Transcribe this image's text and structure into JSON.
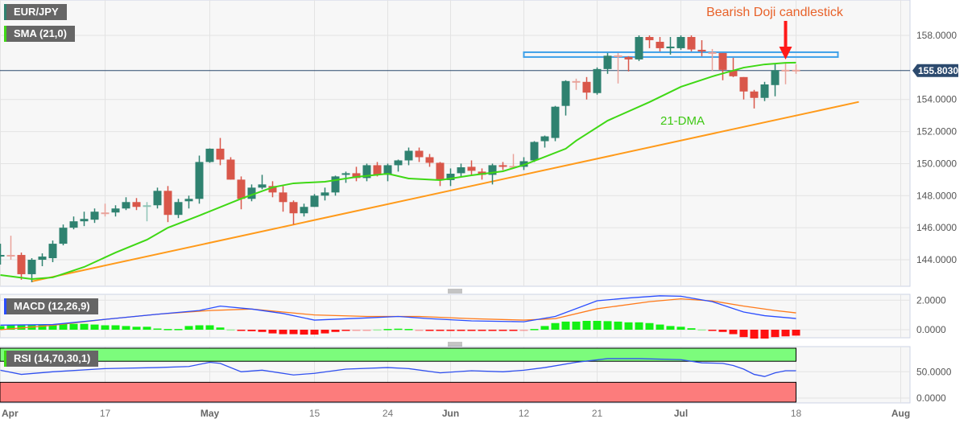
{
  "legend": {
    "symbol": "EUR/JPY",
    "sma": "SMA (21,0)",
    "macd": "MACD (12,26,9)",
    "rsi": "RSI (14,70,30,1)"
  },
  "colors": {
    "up": "#2f8270",
    "down": "#d9574a",
    "sma": "#3fd815",
    "trendline": "#ff9a1a",
    "zone": "#3ea0e8",
    "arrow": "#ff1a1a",
    "annotation": "#e8622a",
    "price_badge": "#2c4a6e",
    "macd_line": "#2a4dff",
    "signal_line": "#ff7a1a",
    "hist_up": "#14f014",
    "hist_down": "#ff1010",
    "rsi_line": "#3050f0",
    "rsi_overbought": "#7cfc7c",
    "rsi_oversold": "#fc7c7c"
  },
  "chart_data": [
    {
      "type": "candlestick",
      "title": "EUR/JPY",
      "y_ticks": [
        "158.0000",
        "154.0000",
        "152.0000",
        "150.0000",
        "148.0000",
        "146.0000",
        "144.0000"
      ],
      "ylim": [
        142.4,
        160.2
      ],
      "last_price": "155.8030",
      "x_ticks": [
        {
          "date": "Apr 3",
          "label": "Apr",
          "month": true
        },
        {
          "date": "Apr 17",
          "label": "17"
        },
        {
          "date": "May 1",
          "label": "May",
          "month": true
        },
        {
          "date": "May 15",
          "label": "15"
        },
        {
          "date": "May 24",
          "label": "24"
        },
        {
          "date": "Jun 1",
          "label": "Jun",
          "month": true
        },
        {
          "date": "Jun 12",
          "label": "12"
        },
        {
          "date": "Jun 21",
          "label": "21"
        },
        {
          "date": "Jul 3",
          "label": "Jul",
          "month": true
        },
        {
          "date": "Jul 18",
          "label": "18"
        },
        {
          "date": "Aug 1",
          "label": "Aug",
          "month": true
        }
      ],
      "candles_fields": [
        "date",
        "open",
        "high",
        "low",
        "close"
      ],
      "candles": [
        [
          "Apr 3",
          144.2,
          145.0,
          143.7,
          144.3
        ],
        [
          "Apr 4",
          144.3,
          145.5,
          144.0,
          144.28
        ],
        [
          "Apr 5",
          144.3,
          144.45,
          142.75,
          143.1
        ],
        [
          "Apr 6",
          143.1,
          144.1,
          142.6,
          144.0
        ],
        [
          "Apr 7",
          144.0,
          144.4,
          143.6,
          144.2
        ],
        [
          "Apr 10",
          144.1,
          145.2,
          143.85,
          145.0
        ],
        [
          "Apr 11",
          145.0,
          146.2,
          144.9,
          146.0
        ],
        [
          "Apr 12",
          146.0,
          146.7,
          145.9,
          146.4
        ],
        [
          "Apr 13",
          146.4,
          147.0,
          146.1,
          146.55
        ],
        [
          "Apr 14",
          146.5,
          147.2,
          146.3,
          147.0
        ],
        [
          "Apr 17",
          146.95,
          147.5,
          146.7,
          146.9
        ],
        [
          "Apr 18",
          146.95,
          147.4,
          146.7,
          147.2
        ],
        [
          "Apr 19",
          147.2,
          147.9,
          147.1,
          147.6
        ],
        [
          "Apr 20",
          147.6,
          147.85,
          147.1,
          147.3
        ],
        [
          "Apr 21",
          147.35,
          147.6,
          146.4,
          147.4
        ],
        [
          "Apr 24",
          147.4,
          148.5,
          147.2,
          148.3
        ],
        [
          "Apr 25",
          148.3,
          148.6,
          146.35,
          146.8
        ],
        [
          "Apr 26",
          146.8,
          147.8,
          146.6,
          147.6
        ],
        [
          "Apr 27",
          147.65,
          148.0,
          147.2,
          147.8
        ],
        [
          "Apr 28",
          147.8,
          150.5,
          147.5,
          150.1
        ],
        [
          "May 1",
          150.1,
          150.95,
          150.05,
          150.93
        ],
        [
          "May 2",
          150.93,
          151.6,
          149.9,
          150.25
        ],
        [
          "May 3",
          150.25,
          150.4,
          149.0,
          149.0
        ],
        [
          "May 4",
          149.0,
          149.2,
          147.15,
          147.8
        ],
        [
          "May 5",
          147.8,
          148.7,
          147.65,
          148.5
        ],
        [
          "May 8",
          148.5,
          149.3,
          148.4,
          148.7
        ],
        [
          "May 9",
          148.6,
          148.9,
          147.9,
          148.2
        ],
        [
          "May 10",
          148.2,
          148.6,
          147.0,
          147.6
        ],
        [
          "May 11",
          147.6,
          147.7,
          146.2,
          146.9
        ],
        [
          "May 12",
          146.9,
          147.5,
          146.7,
          147.3
        ],
        [
          "May 15",
          147.3,
          148.1,
          147.3,
          148.0
        ],
        [
          "May 16",
          148.0,
          148.5,
          147.7,
          148.2
        ],
        [
          "May 17",
          148.2,
          149.25,
          148.0,
          149.2
        ],
        [
          "May 18",
          149.3,
          149.5,
          148.8,
          149.4
        ],
        [
          "May 19",
          149.4,
          149.8,
          148.9,
          149.1
        ],
        [
          "May 22",
          149.1,
          150.0,
          148.9,
          149.9
        ],
        [
          "May 23",
          149.9,
          150.1,
          149.2,
          149.3
        ],
        [
          "May 24",
          149.3,
          150.0,
          148.9,
          149.9
        ],
        [
          "May 25",
          149.9,
          150.25,
          149.5,
          150.2
        ],
        [
          "May 26",
          150.2,
          151.0,
          149.9,
          150.8
        ],
        [
          "May 29",
          150.8,
          151.0,
          150.1,
          150.4
        ],
        [
          "May 30",
          150.4,
          150.6,
          149.8,
          150.05
        ],
        [
          "May 31",
          150.05,
          150.1,
          148.6,
          148.97
        ],
        [
          "Jun 1",
          148.97,
          149.7,
          148.6,
          149.37
        ],
        [
          "Jun 2",
          149.4,
          150.0,
          149.2,
          149.77
        ],
        [
          "Jun 5",
          149.8,
          150.2,
          149.3,
          149.55
        ],
        [
          "Jun 6",
          149.5,
          149.7,
          149.0,
          149.3
        ],
        [
          "Jun 7",
          149.3,
          150.0,
          148.7,
          149.9
        ],
        [
          "Jun 8",
          149.9,
          150.1,
          149.6,
          149.8
        ],
        [
          "Jun 9",
          149.85,
          150.6,
          149.7,
          149.8
        ],
        [
          "Jun 12",
          149.8,
          150.4,
          149.6,
          150.15
        ],
        [
          "Jun 13",
          150.2,
          151.4,
          150.1,
          151.35
        ],
        [
          "Jun 14",
          151.4,
          151.75,
          151.0,
          151.7
        ],
        [
          "Jun 15",
          151.6,
          153.6,
          151.4,
          153.55
        ],
        [
          "Jun 16",
          153.6,
          155.2,
          153.0,
          155.15
        ],
        [
          "Jun 19",
          155.15,
          155.3,
          154.6,
          155.1
        ],
        [
          "Jun 20",
          155.1,
          155.4,
          154.0,
          154.43
        ],
        [
          "Jun 21",
          154.4,
          156.0,
          154.3,
          155.9
        ],
        [
          "Jun 22",
          155.9,
          156.9,
          155.6,
          156.73
        ],
        [
          "Jun 23",
          156.75,
          156.9,
          155.0,
          156.7
        ],
        [
          "Jun 26",
          156.65,
          156.7,
          155.75,
          156.5
        ],
        [
          "Jun 27",
          156.5,
          158.0,
          156.4,
          157.9
        ],
        [
          "Jun 28",
          157.9,
          158.0,
          157.2,
          157.7
        ],
        [
          "Jun 29",
          157.6,
          157.9,
          157.0,
          157.2
        ],
        [
          "Jun 30",
          157.2,
          157.9,
          156.8,
          157.3
        ],
        [
          "Jul 3",
          157.2,
          158.0,
          157.1,
          157.9
        ],
        [
          "Jul 4",
          157.9,
          158.0,
          157.0,
          157.12
        ],
        [
          "Jul 5",
          157.1,
          157.7,
          156.7,
          157.0
        ],
        [
          "Jul 6",
          156.95,
          157.15,
          155.8,
          156.9
        ],
        [
          "Jul 7",
          156.9,
          156.9,
          155.2,
          155.85
        ],
        [
          "Jul 10",
          155.8,
          156.6,
          155.4,
          155.45
        ],
        [
          "Jul 11",
          155.4,
          155.4,
          154.0,
          154.5
        ],
        [
          "Jul 12",
          154.5,
          154.6,
          153.44,
          154.1
        ],
        [
          "Jul 13",
          154.1,
          155.1,
          153.9,
          154.94
        ],
        [
          "Jul 14",
          154.9,
          156.2,
          154.2,
          155.83
        ],
        [
          "Jul 17",
          155.85,
          156.3,
          154.95,
          155.8
        ],
        [
          "Jul 18",
          155.85,
          156.2,
          155.6,
          155.803
        ]
      ],
      "sma": {
        "name": "SMA (21,0)",
        "annotation": "21-DMA",
        "points": [
          [
            "Apr 3",
            143.05
          ],
          [
            "Apr 6",
            142.8
          ],
          [
            "Apr 10",
            142.9
          ],
          [
            "Apr 13",
            143.55
          ],
          [
            "Apr 18",
            144.45
          ],
          [
            "Apr 21",
            145.25
          ],
          [
            "Apr 25",
            146.0
          ],
          [
            "Apr 28",
            146.76
          ],
          [
            "May 4",
            147.81
          ],
          [
            "May 9",
            148.52
          ],
          [
            "May 11",
            148.77
          ],
          [
            "May 16",
            148.87
          ],
          [
            "May 19",
            149.17
          ],
          [
            "May 24",
            149.37
          ],
          [
            "May 26",
            149.07
          ],
          [
            "May 31",
            148.97
          ],
          [
            "Jun 5",
            149.27
          ],
          [
            "Jun 8",
            149.52
          ],
          [
            "Jun 12",
            149.92
          ],
          [
            "Jun 14",
            150.42
          ],
          [
            "Jun 16",
            150.93
          ],
          [
            "Jun 19",
            151.43
          ],
          [
            "Jun 22",
            152.68
          ],
          [
            "Jun 28",
            153.84
          ],
          [
            "Jul 3",
            154.79
          ],
          [
            "Jul 6",
            155.44
          ],
          [
            "Jul 11",
            155.99
          ],
          [
            "Jul 13",
            156.19
          ],
          [
            "Jul 17",
            156.29
          ],
          [
            "Jul 18",
            156.3
          ]
        ]
      },
      "trendline": {
        "from": [
          "Apr 6",
          142.65
        ],
        "to": [
          "Jul 26",
          153.85
        ]
      },
      "resistance_zone": {
        "from": "Jun 12",
        "to": "Jul 23",
        "top": 156.95,
        "bottom": 156.65
      },
      "annotation": {
        "text": "Bearish Doji candlestick",
        "date": "Jul 17",
        "price": 156.3
      }
    },
    {
      "type": "macd",
      "title": "MACD (12,26,9)",
      "y_ticks": [
        "2.0000",
        "0.0000"
      ],
      "macd": [
        [
          "Apr 3",
          0.31
        ],
        [
          "Apr 10",
          0.35
        ],
        [
          "Apr 17",
          0.7
        ],
        [
          "Apr 24",
          1.05
        ],
        [
          "Apr 28",
          1.3
        ],
        [
          "May 2",
          1.6
        ],
        [
          "May 5",
          1.4
        ],
        [
          "May 10",
          1.1
        ],
        [
          "May 15",
          0.65
        ],
        [
          "May 22",
          0.8
        ],
        [
          "May 25",
          0.9
        ],
        [
          "May 30",
          0.75
        ],
        [
          "Jun 5",
          0.6
        ],
        [
          "Jun 12",
          0.54
        ],
        [
          "Jun 15",
          0.9
        ],
        [
          "Jun 21",
          1.96
        ],
        [
          "Jun 26",
          2.15
        ],
        [
          "Jun 29",
          2.3
        ],
        [
          "Jul 3",
          2.27
        ],
        [
          "Jul 6",
          1.9
        ],
        [
          "Jul 11",
          1.2
        ],
        [
          "Jul 13",
          0.95
        ],
        [
          "Jul 18",
          0.76
        ]
      ],
      "signal": [
        [
          "Apr 3",
          0.0
        ],
        [
          "Apr 10",
          0.3
        ],
        [
          "Apr 17",
          0.7
        ],
        [
          "Apr 24",
          1.05
        ],
        [
          "May 1",
          1.3
        ],
        [
          "May 5",
          1.4
        ],
        [
          "May 10",
          1.2
        ],
        [
          "May 15",
          1.0
        ],
        [
          "May 22",
          0.9
        ],
        [
          "May 29",
          0.9
        ],
        [
          "Jun 5",
          0.75
        ],
        [
          "Jun 12",
          0.65
        ],
        [
          "Jun 15",
          0.75
        ],
        [
          "Jun 21",
          1.42
        ],
        [
          "Jun 28",
          1.9
        ],
        [
          "Jul 3",
          2.09
        ],
        [
          "Jul 6",
          1.95
        ],
        [
          "Jul 11",
          1.6
        ],
        [
          "Jul 14",
          1.3
        ],
        [
          "Jul 18",
          1.14
        ]
      ],
      "histogram": [
        0.25,
        0.3,
        0.3,
        0.3,
        0.35,
        0.35,
        0.4,
        0.4,
        0.4,
        0.35,
        0.3,
        0.3,
        0.25,
        0.2,
        0.2,
        0.08,
        0.05,
        0.05,
        0.25,
        0.3,
        0.3,
        0.15,
        0.02,
        -0.05,
        -0.1,
        -0.15,
        -0.25,
        -0.3,
        -0.3,
        -0.33,
        -0.33,
        -0.25,
        -0.15,
        -0.05,
        -0.02,
        -0.01,
        0.02,
        0.05,
        0.07,
        0.05,
        -0.03,
        -0.05,
        -0.06,
        -0.06,
        -0.06,
        -0.07,
        -0.08,
        -0.08,
        -0.08,
        -0.08,
        -0.02,
        0.05,
        0.25,
        0.45,
        0.55,
        0.55,
        0.6,
        0.6,
        0.58,
        0.55,
        0.5,
        0.5,
        0.45,
        0.35,
        0.25,
        0.2,
        0.1,
        0.02,
        -0.05,
        -0.15,
        -0.3,
        -0.5,
        -0.6,
        -0.6,
        -0.5,
        -0.45,
        -0.4
      ]
    },
    {
      "type": "rsi",
      "title": "RSI (14,70,30,1)",
      "y_ticks": [
        "50.0000",
        "0.0000"
      ],
      "overbought": 70,
      "oversold": 30,
      "values": [
        [
          "Apr 3",
          53
        ],
        [
          "Apr 5",
          45
        ],
        [
          "Apr 10",
          50
        ],
        [
          "Apr 17",
          56
        ],
        [
          "Apr 24",
          58
        ],
        [
          "Apr 27",
          60
        ],
        [
          "May 1",
          68
        ],
        [
          "May 2",
          66
        ],
        [
          "May 4",
          50
        ],
        [
          "May 8",
          53
        ],
        [
          "May 11",
          44
        ],
        [
          "May 15",
          47
        ],
        [
          "May 18",
          55
        ],
        [
          "May 24",
          58
        ],
        [
          "May 26",
          56
        ],
        [
          "May 31",
          48
        ],
        [
          "Jun 5",
          52
        ],
        [
          "Jun 8",
          50
        ],
        [
          "Jun 12",
          53
        ],
        [
          "Jun 14",
          58
        ],
        [
          "Jun 19",
          68
        ],
        [
          "Jun 22",
          75
        ],
        [
          "Jun 27",
          75
        ],
        [
          "Jul 3",
          73
        ],
        [
          "Jul 5",
          67
        ],
        [
          "Jul 7",
          66
        ],
        [
          "Jul 10",
          62
        ],
        [
          "Jul 11",
          55
        ],
        [
          "Jul 12",
          45
        ],
        [
          "Jul 13",
          41
        ],
        [
          "Jul 14",
          48
        ],
        [
          "Jul 17",
          52
        ],
        [
          "Jul 18",
          52
        ]
      ]
    }
  ]
}
